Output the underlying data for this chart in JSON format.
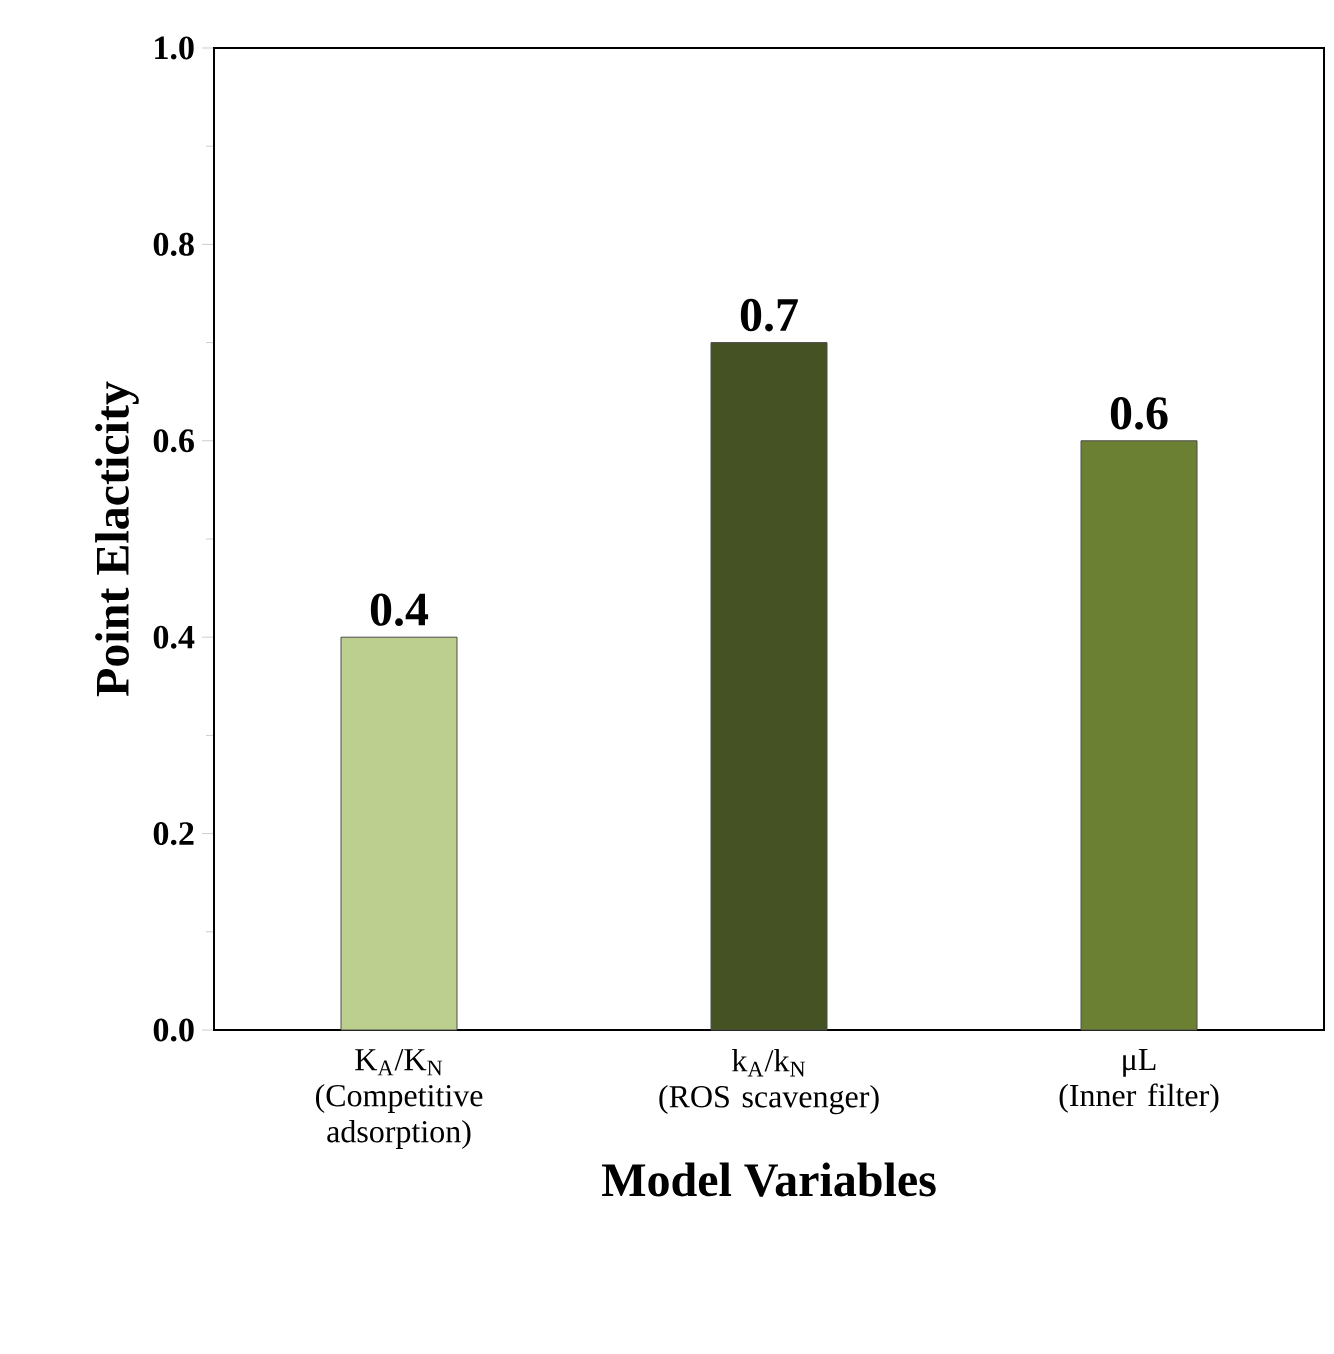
{
  "chart_data": {
    "type": "bar",
    "xlabel": "Model Variables",
    "ylabel": "Point Elacticity",
    "categories": [
      "K$_{A}$/K$_{N}$\n(Competitive adsorption)",
      "k$_{A}$/k$_{N}$\n(ROS scavenger)",
      "μL\n(Inner filter)"
    ],
    "values": [
      0.4,
      0.7,
      0.6
    ],
    "colors": [
      "#bccf8e",
      "#455223",
      "#6b8033"
    ],
    "data_labels": true,
    "ylim": [
      0,
      1
    ],
    "yticks": [
      {
        "value": 0,
        "label": "0.0"
      },
      {
        "value": 0.1,
        "label": null
      },
      {
        "value": 0.2,
        "label": "0.2"
      },
      {
        "value": 0.3,
        "label": null
      },
      {
        "value": 0.4,
        "label": "0.4"
      },
      {
        "value": 0.5,
        "label": null
      },
      {
        "value": 0.6,
        "label": "0.6"
      },
      {
        "value": 0.7,
        "label": null
      },
      {
        "value": 0.8,
        "label": "0.8"
      },
      {
        "value": 0.9,
        "label": null
      },
      {
        "value": 1.0,
        "label": "1.0"
      }
    ]
  }
}
